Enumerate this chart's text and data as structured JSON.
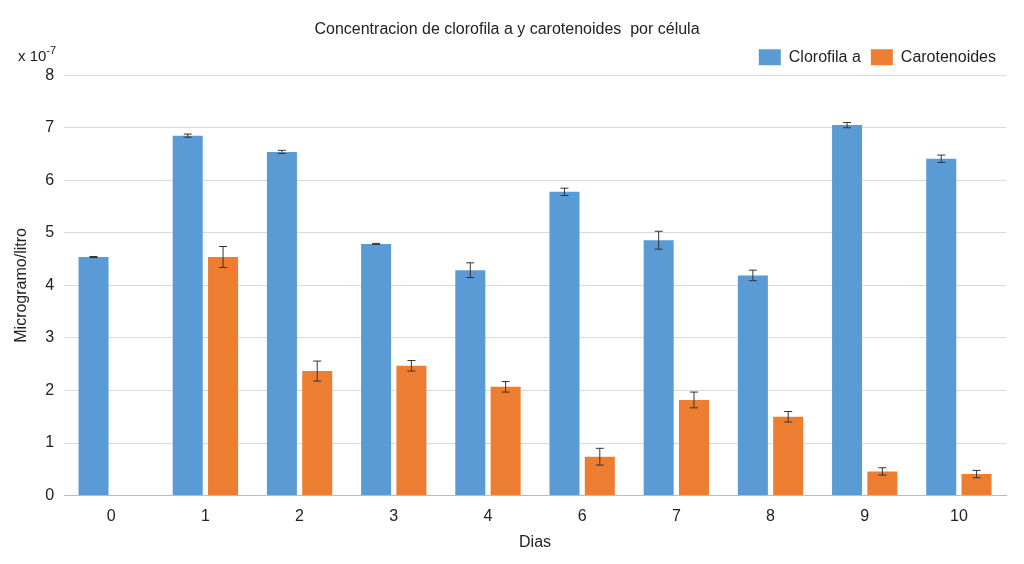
{
  "chart_data": {
    "type": "bar",
    "title": "Concentracion de clorofila a y carotenoides  por célula",
    "xlabel": "Dias",
    "ylabel": "Microgramo/litro",
    "annotations": [
      "x 10$^{-7}$"
    ],
    "categories": [
      "0",
      "1",
      "2",
      "3",
      "4",
      "6",
      "7",
      "8",
      "9",
      "10"
    ],
    "series": [
      {
        "name": "Clorofila a",
        "color": "#5b9bd5",
        "values": [
          4.54,
          6.85,
          6.54,
          4.79,
          4.29,
          5.78,
          4.86,
          4.19,
          7.05,
          6.41
        ],
        "errors": [
          0.01,
          0.03,
          0.03,
          0.01,
          0.14,
          0.07,
          0.17,
          0.1,
          0.05,
          0.07
        ]
      },
      {
        "name": "Carotenoides",
        "color": "#ed7d31",
        "values": [
          null,
          4.54,
          2.37,
          2.47,
          2.07,
          0.74,
          1.82,
          1.5,
          0.46,
          0.41
        ],
        "errors": [
          null,
          0.2,
          0.19,
          0.1,
          0.1,
          0.16,
          0.15,
          0.1,
          0.07,
          0.07
        ]
      }
    ],
    "ylim": [
      0,
      8
    ],
    "yticks": [
      0,
      1,
      2,
      3,
      4,
      5,
      6,
      7,
      8
    ],
    "grid": "y",
    "legend": "top right"
  }
}
